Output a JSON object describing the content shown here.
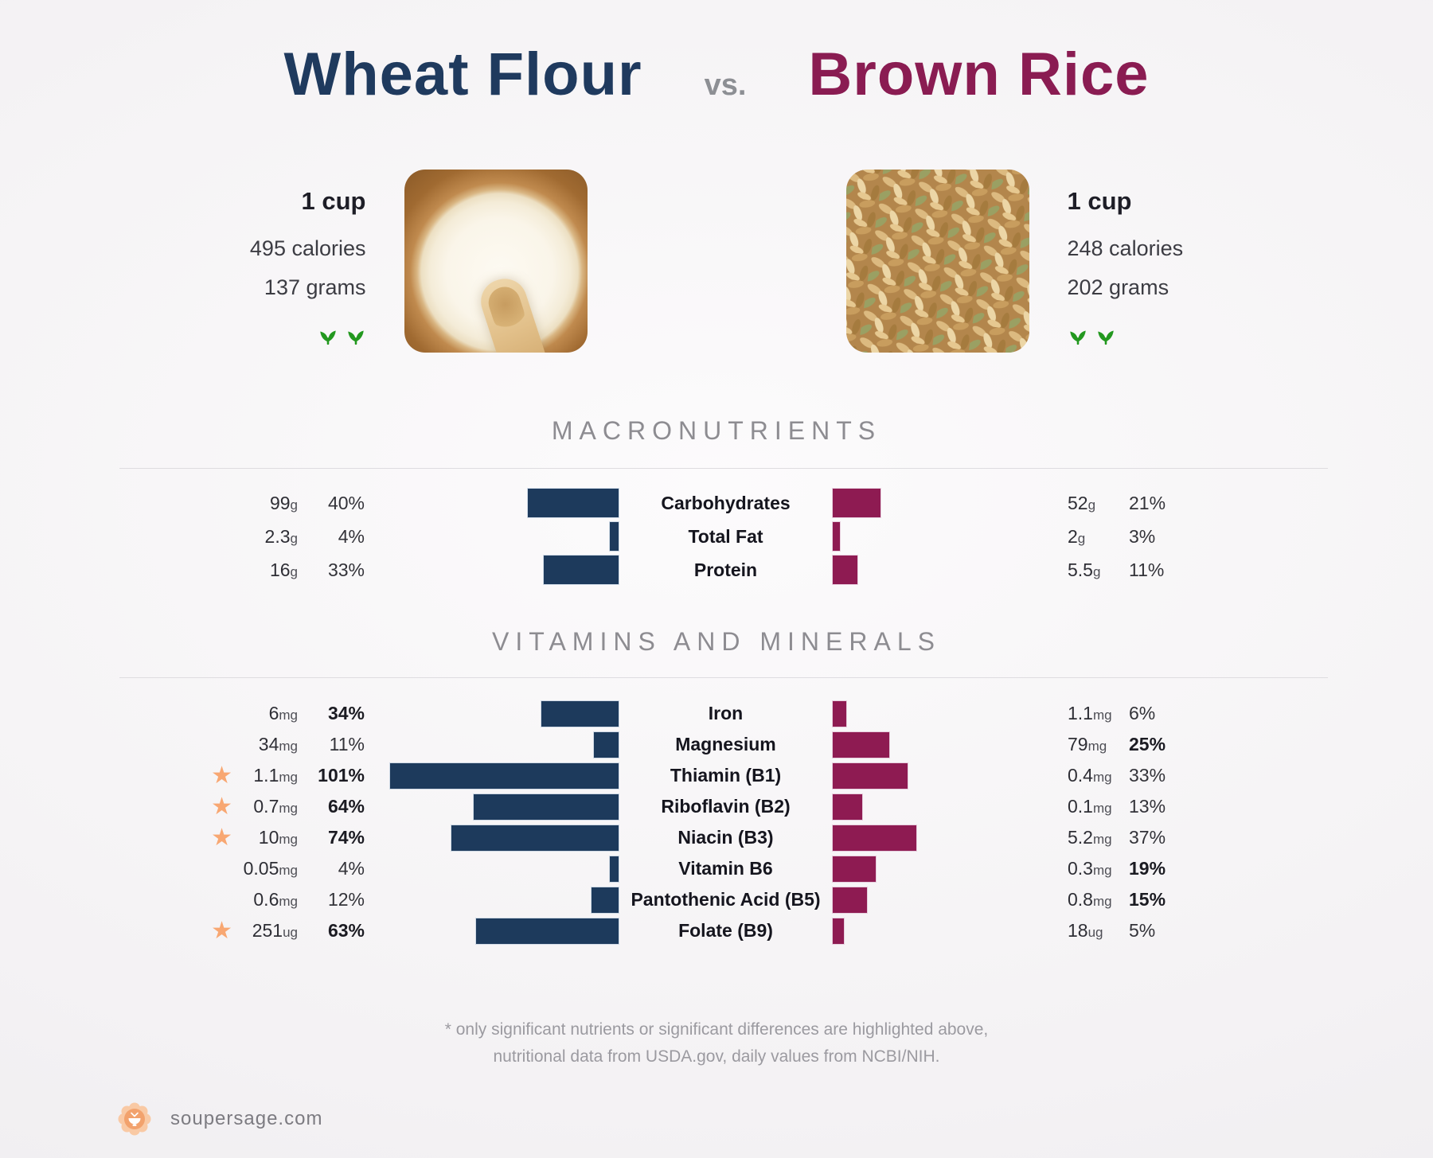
{
  "title": {
    "left": "Wheat Flour",
    "vs": "vs.",
    "right": "Brown Rice"
  },
  "foods": {
    "left": {
      "serving": "1 cup",
      "calories": "495 calories",
      "weight": "137 grams",
      "photo": "wheat flour",
      "vegan_icons": "two seedlings"
    },
    "right": {
      "serving": "1 cup",
      "calories": "248 calories",
      "weight": "202 grams",
      "photo": "brown rice",
      "vegan_icons": "two seedlings"
    }
  },
  "footnote": [
    "* only significant nutrients or significant differences are highlighted above,",
    "nutritional data from USDA.gov, daily values from NCBI/NIH."
  ],
  "brand": {
    "name": "soupersage.com",
    "logo": "soup-bowl-flower-badge"
  },
  "colors": {
    "navy": "#1d3a5c",
    "maroon": "#8e1b52",
    "title_navy": "#1f3a5e",
    "title_maroon": "#8a1c52",
    "star": "#f8a772",
    "leaf": "#23981f"
  },
  "chart_data": {
    "type": "bar",
    "orientation": "horizontal, paired back-to-back from center",
    "title": "Wheat Flour vs. Brown Rice",
    "series": [
      {
        "name": "Wheat Flour",
        "serving": "1 cup",
        "calories": 495,
        "grams": 137,
        "color": "#1d3a5c",
        "side": "left"
      },
      {
        "name": "Brown Rice",
        "serving": "1 cup",
        "calories": 248,
        "grams": 202,
        "color": "#8e1b52",
        "side": "right"
      }
    ],
    "value_unit": "% of daily value",
    "sections": [
      {
        "name": "MACRONUTRIENTS",
        "rows": [
          {
            "label": "Carbohydrates",
            "star": false,
            "left": {
              "value": "99",
              "unit": "g",
              "pct": 40,
              "strong": false
            },
            "right": {
              "value": "52",
              "unit": "g",
              "pct": 21,
              "strong": false
            }
          },
          {
            "label": "Total Fat",
            "star": false,
            "left": {
              "value": "2.3",
              "unit": "g",
              "pct": 4,
              "strong": false
            },
            "right": {
              "value": "2",
              "unit": "g",
              "pct": 3,
              "strong": false
            }
          },
          {
            "label": "Protein",
            "star": false,
            "left": {
              "value": "16",
              "unit": "g",
              "pct": 33,
              "strong": false
            },
            "right": {
              "value": "5.5",
              "unit": "g",
              "pct": 11,
              "strong": false
            }
          }
        ]
      },
      {
        "name": "VITAMINS AND MINERALS",
        "rows": [
          {
            "label": "Iron",
            "star": false,
            "left": {
              "value": "6",
              "unit": "mg",
              "pct": 34,
              "strong": true
            },
            "right": {
              "value": "1.1",
              "unit": "mg",
              "pct": 6,
              "strong": false
            }
          },
          {
            "label": "Magnesium",
            "star": false,
            "left": {
              "value": "34",
              "unit": "mg",
              "pct": 11,
              "strong": false
            },
            "right": {
              "value": "79",
              "unit": "mg",
              "pct": 25,
              "strong": true
            }
          },
          {
            "label": "Thiamin (B1)",
            "star": true,
            "left": {
              "value": "1.1",
              "unit": "mg",
              "pct": 101,
              "strong": true
            },
            "right": {
              "value": "0.4",
              "unit": "mg",
              "pct": 33,
              "strong": false
            }
          },
          {
            "label": "Riboflavin (B2)",
            "star": true,
            "left": {
              "value": "0.7",
              "unit": "mg",
              "pct": 64,
              "strong": true
            },
            "right": {
              "value": "0.1",
              "unit": "mg",
              "pct": 13,
              "strong": false
            }
          },
          {
            "label": "Niacin (B3)",
            "star": true,
            "left": {
              "value": "10",
              "unit": "mg",
              "pct": 74,
              "strong": true
            },
            "right": {
              "value": "5.2",
              "unit": "mg",
              "pct": 37,
              "strong": false
            }
          },
          {
            "label": "Vitamin B6",
            "star": false,
            "left": {
              "value": "0.05",
              "unit": "mg",
              "pct": 4,
              "strong": false
            },
            "right": {
              "value": "0.3",
              "unit": "mg",
              "pct": 19,
              "strong": true
            }
          },
          {
            "label": "Pantothenic Acid (B5)",
            "star": false,
            "left": {
              "value": "0.6",
              "unit": "mg",
              "pct": 12,
              "strong": false
            },
            "right": {
              "value": "0.8",
              "unit": "mg",
              "pct": 15,
              "strong": true
            }
          },
          {
            "label": "Folate (B9)",
            "star": true,
            "left": {
              "value": "251",
              "unit": "ug",
              "pct": 63,
              "strong": true
            },
            "right": {
              "value": "18",
              "unit": "ug",
              "pct": 5,
              "strong": false
            }
          }
        ]
      }
    ]
  }
}
